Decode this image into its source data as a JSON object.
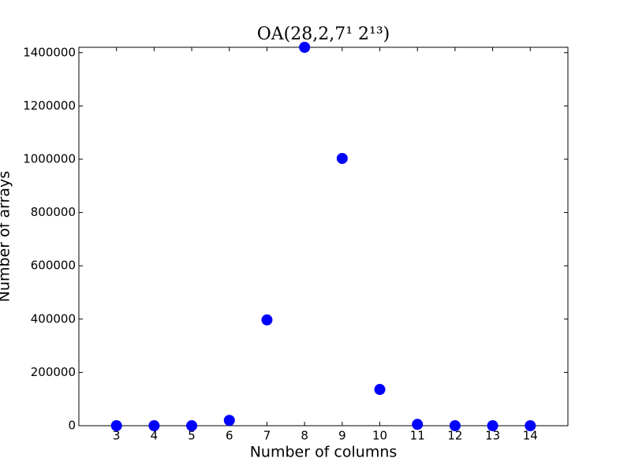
{
  "chart_data": {
    "type": "scatter",
    "title": "OA(28,2,7¹ 2¹³)",
    "x_label": "Number of columns",
    "y_label": "Number of arrays",
    "x": [
      3,
      4,
      5,
      6,
      7,
      8,
      9,
      10,
      11,
      12,
      13,
      14
    ],
    "series": [
      {
        "color": "#0000ff",
        "values": [
          0,
          0,
          0,
          20000,
          397000,
          1420000,
          1003000,
          136000,
          5000,
          0,
          0,
          0
        ]
      }
    ],
    "xlim": [
      2,
      15
    ],
    "xticks": [
      3,
      4,
      5,
      6,
      7,
      8,
      9,
      10,
      11,
      12,
      13,
      14
    ],
    "ylim": [
      0,
      1420000
    ],
    "yticks": [
      0,
      200000,
      400000,
      600000,
      800000,
      1000000,
      1200000,
      1400000
    ]
  }
}
